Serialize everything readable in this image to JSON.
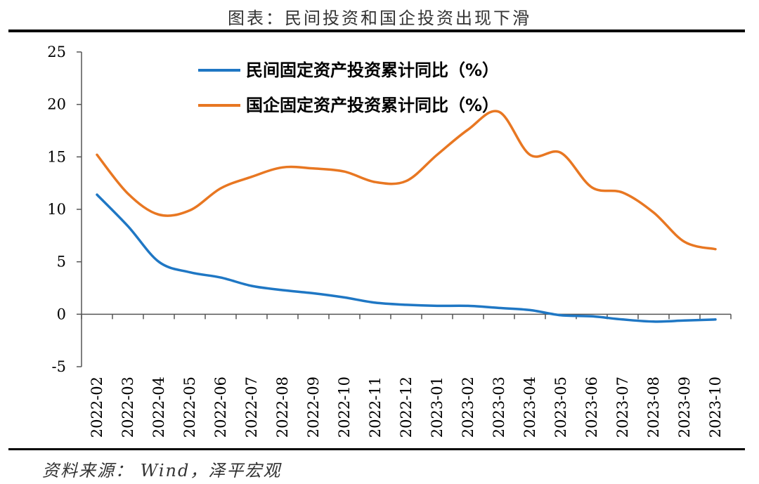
{
  "header": {
    "title": "图表：民间投资和国企投资出现下滑"
  },
  "footer": {
    "source": "资料来源：  Wind，泽平宏观"
  },
  "chart_data": {
    "type": "line",
    "title": "图表：民间投资和国企投资出现下滑",
    "xlabel": "",
    "ylabel": "",
    "categories": [
      "2022-02",
      "2022-03",
      "2022-04",
      "2022-05",
      "2022-06",
      "2022-07",
      "2022-08",
      "2022-09",
      "2022-10",
      "2022-11",
      "2022-12",
      "2023-01",
      "2023-02",
      "2023-03",
      "2023-04",
      "2023-05",
      "2023-06",
      "2023-07",
      "2023-08",
      "2023-09",
      "2023-10"
    ],
    "yticks": [
      "25",
      "20",
      "15",
      "10",
      "5",
      "0",
      "-5"
    ],
    "ylim": [
      -5,
      25
    ],
    "grid": false,
    "legend_position": "top-center",
    "series": [
      {
        "name": "民间固定资产投资累计同比（%）",
        "color": "#1f77c4",
        "values": [
          11.4,
          8.4,
          5.0,
          4.0,
          3.5,
          2.7,
          2.3,
          2.0,
          1.6,
          1.1,
          0.9,
          0.8,
          0.8,
          0.6,
          0.4,
          -0.1,
          -0.2,
          -0.5,
          -0.7,
          -0.6,
          -0.5
        ]
      },
      {
        "name": "国企固定资产投资累计同比（%）",
        "color": "#e87722",
        "values": [
          15.2,
          11.5,
          9.5,
          9.9,
          12.0,
          13.1,
          14.0,
          13.9,
          13.6,
          12.6,
          12.7,
          15.2,
          17.6,
          19.3,
          15.2,
          15.4,
          12.1,
          11.6,
          9.7,
          6.9,
          6.2
        ]
      }
    ]
  }
}
